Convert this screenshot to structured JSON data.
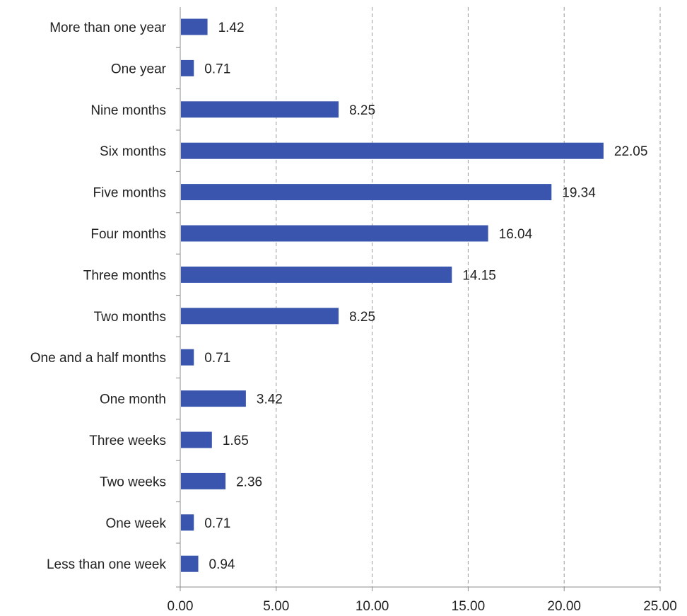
{
  "chart_data": {
    "type": "bar",
    "orientation": "horizontal",
    "title": "",
    "xlabel": "",
    "ylabel": "",
    "categories": [
      "More than one year",
      "One year",
      "Nine months",
      "Six months",
      "Five months",
      "Four months",
      "Three months",
      "Two months",
      "One and a half months",
      "One month",
      "Three weeks",
      "Two weeks",
      "One week",
      "Less than one week"
    ],
    "values": [
      1.42,
      0.71,
      8.25,
      22.05,
      19.34,
      16.04,
      14.15,
      8.25,
      0.71,
      3.42,
      1.65,
      2.36,
      0.71,
      0.94
    ],
    "value_labels": [
      "1.42",
      "0.71",
      "8.25",
      "22.05",
      "19.34",
      "16.04",
      "14.15",
      "8.25",
      "0.71",
      "3.42",
      "1.65",
      "2.36",
      "0.71",
      "0.94"
    ],
    "xlim": [
      0,
      25
    ],
    "x_ticks": [
      0,
      5,
      10,
      15,
      20,
      25
    ],
    "x_tick_labels": [
      "0.00",
      "5.00",
      "10.00",
      "15.00",
      "20.00",
      "25.00"
    ],
    "grid": "vertical dashed",
    "legend": "none",
    "bar_color": "#3a55ad",
    "grid_color": "#9a9a9a",
    "axis_color": "#8c8c8c"
  }
}
